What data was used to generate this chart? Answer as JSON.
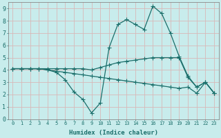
{
  "xlabel": "Humidex (Indice chaleur)",
  "xlim": [
    -0.5,
    23.5
  ],
  "ylim": [
    0,
    9.5
  ],
  "xticks": [
    0,
    1,
    2,
    3,
    4,
    5,
    6,
    7,
    8,
    9,
    10,
    11,
    12,
    13,
    14,
    15,
    16,
    17,
    18,
    19,
    20,
    21,
    22,
    23
  ],
  "yticks": [
    0,
    1,
    2,
    3,
    4,
    5,
    6,
    7,
    8,
    9
  ],
  "bg_color": "#c8ecec",
  "grid_color": "#d8b8b8",
  "line_color": "#1a6e6a",
  "line1_x": [
    0,
    1,
    2,
    3,
    4,
    5,
    6,
    7,
    8,
    9,
    10,
    11,
    12,
    13,
    14,
    15,
    16,
    17,
    18,
    19,
    20,
    21,
    22,
    23
  ],
  "line1_y": [
    4.1,
    4.1,
    4.1,
    4.1,
    4.0,
    3.8,
    3.2,
    2.2,
    1.6,
    0.5,
    1.3,
    5.8,
    7.7,
    8.1,
    7.7,
    7.3,
    9.2,
    8.6,
    7.0,
    5.1,
    3.5,
    2.6,
    3.0,
    2.1
  ],
  "line2_x": [
    0,
    1,
    2,
    3,
    4,
    5,
    6,
    7,
    8,
    9,
    10,
    11,
    12,
    13,
    14,
    15,
    16,
    17,
    18,
    19,
    20,
    21,
    22,
    23
  ],
  "line2_y": [
    4.1,
    4.1,
    4.1,
    4.1,
    4.1,
    4.1,
    4.1,
    4.1,
    4.1,
    4.0,
    4.2,
    4.4,
    4.6,
    4.7,
    4.8,
    4.9,
    5.0,
    5.0,
    5.0,
    5.0,
    3.4,
    2.6,
    3.0,
    2.1
  ],
  "line3_x": [
    0,
    1,
    2,
    3,
    4,
    5,
    6,
    7,
    8,
    9,
    10,
    11,
    12,
    13,
    14,
    15,
    16,
    17,
    18,
    19,
    20,
    21,
    22,
    23
  ],
  "line3_y": [
    4.1,
    4.1,
    4.1,
    4.1,
    4.0,
    3.9,
    3.8,
    3.7,
    3.6,
    3.5,
    3.4,
    3.3,
    3.2,
    3.1,
    3.0,
    2.9,
    2.8,
    2.7,
    2.6,
    2.5,
    2.6,
    2.1,
    3.0,
    2.1
  ]
}
